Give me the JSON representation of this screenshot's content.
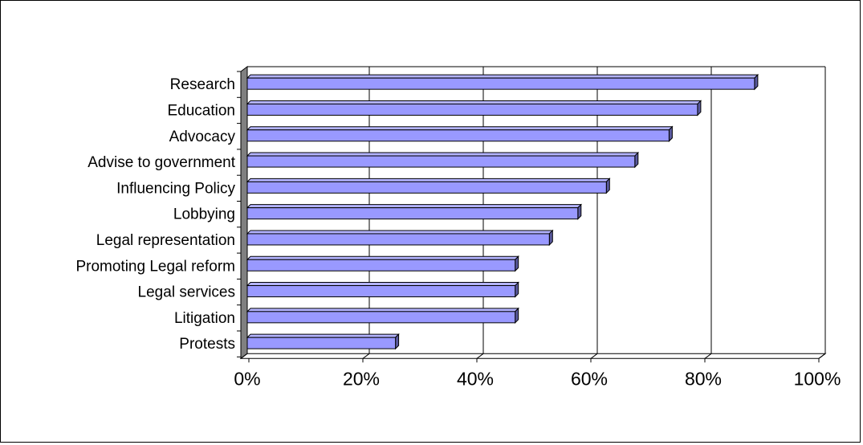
{
  "chart_data": {
    "type": "bar",
    "orientation": "horizontal",
    "style": "3d-bar",
    "title": "",
    "xlabel": "",
    "ylabel": "",
    "categories": [
      "Research",
      "Education",
      "Advocacy",
      "Advise to government",
      "Influencing Policy",
      "Lobbying",
      "Legal representation",
      "Promoting Legal reform",
      "Legal services",
      "Litigation",
      "Protests"
    ],
    "values": [
      89,
      79,
      74,
      68,
      63,
      58,
      53,
      47,
      47,
      47,
      26
    ],
    "xlim": [
      0,
      100
    ],
    "x_ticks": [
      "0%",
      "20%",
      "40%",
      "60%",
      "80%",
      "100%"
    ],
    "grid": "vertical",
    "legend": "none",
    "colors": {
      "bar_fill": "#9999ff",
      "bar_top": "#b3b3ff",
      "bar_side": "#5a5a9e",
      "wall": "#808080",
      "gridline": "#000000"
    }
  }
}
